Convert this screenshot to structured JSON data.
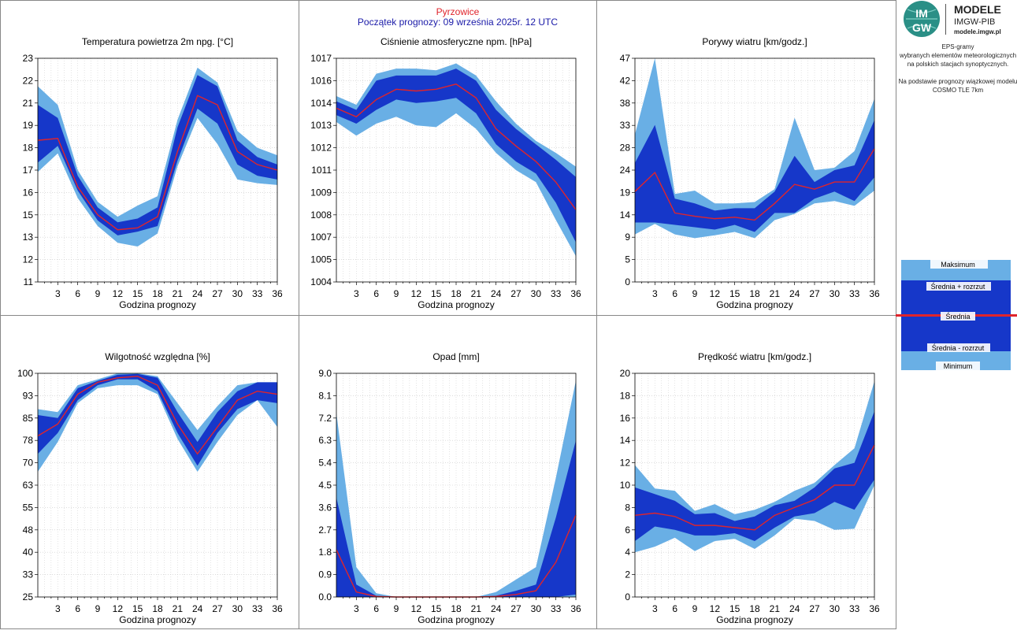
{
  "header": {
    "station": "Pyrzowice",
    "forecast_start": "Początek prognozy: 09 września 2025r. 12 UTC"
  },
  "logo": {
    "mark_top": "IM",
    "mark_bottom": "GW",
    "title": "MODELE",
    "subtitle": "IMGW-PIB",
    "url": "modele.imgw.pl"
  },
  "description": {
    "lines": [
      "EPS-gramy",
      "wybranych elementów meteorologicznych",
      "na polskich stacjach  synoptycznych.",
      "",
      "Na podstawie prognozy wiązkowej modelu",
      "COSMO TLE 7km"
    ]
  },
  "legend": {
    "items": [
      "Maksimum",
      "Średnia + rozrzut",
      "Średnia",
      "Średnia - rozrzut",
      "Minimum"
    ]
  },
  "colors": {
    "outer_band": "#69afe5",
    "inner_band": "#1637c9",
    "mean_line": "#e0242b",
    "station_title": "#e0242b",
    "forecast_title": "#1a1aa8",
    "grid": "#c8c8c8",
    "frame": "#888888"
  },
  "chart_data": [
    {
      "type": "area",
      "title": "Temperatura powietrza 2m npg. [°C]",
      "xlabel": "Godzina prognozy",
      "x": [
        0,
        3,
        6,
        9,
        12,
        15,
        18,
        21,
        24,
        27,
        30,
        33,
        36
      ],
      "x_ticks": [
        "3",
        "6",
        "9",
        "12",
        "15",
        "18",
        "21",
        "24",
        "27",
        "30",
        "33",
        "36"
      ],
      "y_ticks": [
        "11",
        "12",
        "13",
        "15",
        "16",
        "17",
        "18",
        "19",
        "21",
        "22",
        "23"
      ],
      "ylim": [
        11,
        23
      ],
      "series": [
        {
          "name": "Maksimum",
          "values": [
            21.5,
            20.5,
            17.0,
            15.3,
            14.5,
            15.1,
            15.6,
            19.7,
            22.5,
            21.7,
            19.1,
            18.2,
            17.8
          ]
        },
        {
          "name": "Średnia + rozrzut",
          "values": [
            20.5,
            19.8,
            16.7,
            15.0,
            14.2,
            14.4,
            15.0,
            19.3,
            22.1,
            21.5,
            18.6,
            17.7,
            17.3
          ]
        },
        {
          "name": "Średnia",
          "values": [
            18.6,
            18.7,
            16.1,
            14.6,
            13.8,
            13.9,
            14.5,
            18.0,
            21.0,
            20.5,
            18.0,
            17.3,
            17.0
          ]
        },
        {
          "name": "Średnia - rozrzut",
          "values": [
            17.4,
            18.3,
            15.9,
            14.3,
            13.5,
            13.7,
            14.0,
            17.5,
            20.3,
            19.5,
            17.3,
            16.7,
            16.5
          ]
        },
        {
          "name": "Minimum",
          "values": [
            16.9,
            17.9,
            15.5,
            14.0,
            13.1,
            12.9,
            13.6,
            17.2,
            19.8,
            18.4,
            16.5,
            16.3,
            16.2
          ]
        }
      ]
    },
    {
      "type": "area",
      "title": "Ciśnienie atmosferyczne npm. [hPa]",
      "xlabel": "Godzina prognozy",
      "x": [
        0,
        3,
        6,
        9,
        12,
        15,
        18,
        21,
        24,
        27,
        30,
        33,
        36
      ],
      "x_ticks": [
        "3",
        "6",
        "9",
        "12",
        "15",
        "18",
        "21",
        "24",
        "27",
        "30",
        "33",
        "36"
      ],
      "y_ticks": [
        "1004",
        "1005",
        "1007",
        "1008",
        "1009",
        "1011",
        "1012",
        "1013",
        "1014",
        "1016",
        "1017"
      ],
      "ylim": [
        1004,
        1017
      ],
      "series": [
        {
          "name": "Maksimum",
          "values": [
            1014.8,
            1014.3,
            1016.1,
            1016.4,
            1016.4,
            1016.3,
            1016.7,
            1016.0,
            1014.5,
            1013.2,
            1012.2,
            1011.5,
            1010.7
          ]
        },
        {
          "name": "Średnia + rozrzut",
          "values": [
            1014.5,
            1014.0,
            1015.7,
            1016.0,
            1016.0,
            1016.0,
            1016.4,
            1015.7,
            1014.0,
            1012.9,
            1012.0,
            1011.1,
            1010.1
          ]
        },
        {
          "name": "Średnia",
          "values": [
            1014.1,
            1013.6,
            1014.6,
            1015.2,
            1015.1,
            1015.2,
            1015.5,
            1014.7,
            1012.9,
            1011.9,
            1011.0,
            1009.8,
            1008.2
          ]
        },
        {
          "name": "Średnia - rozrzut",
          "values": [
            1013.7,
            1013.2,
            1014.0,
            1014.6,
            1014.4,
            1014.5,
            1014.7,
            1013.8,
            1012.0,
            1011.0,
            1010.3,
            1008.6,
            1006.3
          ]
        },
        {
          "name": "Minimum",
          "values": [
            1013.3,
            1012.5,
            1013.2,
            1013.6,
            1013.1,
            1013.0,
            1013.8,
            1012.9,
            1011.5,
            1010.5,
            1009.8,
            1007.6,
            1005.5
          ]
        }
      ]
    },
    {
      "type": "area",
      "title": "Porywy wiatru [km/godz.]",
      "xlabel": "Godzina prognozy",
      "x": [
        0,
        3,
        6,
        9,
        12,
        15,
        18,
        21,
        24,
        27,
        30,
        33,
        36
      ],
      "x_ticks": [
        "3",
        "6",
        "9",
        "12",
        "15",
        "18",
        "21",
        "24",
        "27",
        "30",
        "33",
        "36"
      ],
      "y_ticks": [
        "0",
        "5",
        "9",
        "14",
        "19",
        "24",
        "28",
        "33",
        "38",
        "42",
        "47"
      ],
      "ylim": [
        0,
        47
      ],
      "series": [
        {
          "name": "Maksimum",
          "values": [
            31,
            47,
            18.5,
            19.2,
            16.5,
            16.5,
            16.8,
            19.5,
            34.5,
            23.5,
            24.0,
            27.5,
            38.5
          ]
        },
        {
          "name": "Średnia + rozrzut",
          "values": [
            25,
            33,
            17.5,
            16.5,
            15.0,
            15.5,
            15.5,
            19.0,
            26.5,
            21.0,
            23.5,
            24.5,
            34.0
          ]
        },
        {
          "name": "Średnia",
          "values": [
            19,
            23,
            14.5,
            13.8,
            13.3,
            13.6,
            13.0,
            16.5,
            20.5,
            19.5,
            21.0,
            21.0,
            28.0
          ]
        },
        {
          "name": "Średnia - rozrzut",
          "values": [
            12.5,
            12.5,
            12.0,
            11.5,
            11.0,
            12.0,
            10.5,
            14.5,
            14.5,
            17.5,
            19.0,
            17.0,
            22.0
          ]
        },
        {
          "name": "Minimum",
          "values": [
            10,
            12.2,
            10.0,
            9.2,
            9.8,
            10.5,
            9.2,
            13.0,
            14.3,
            16.5,
            17.0,
            16.0,
            19.2
          ]
        }
      ]
    },
    {
      "type": "area",
      "title": "Wilgotność względna [%]",
      "xlabel": "Godzina prognozy",
      "x": [
        0,
        3,
        6,
        9,
        12,
        15,
        18,
        21,
        24,
        27,
        30,
        33,
        36
      ],
      "x_ticks": [
        "3",
        "6",
        "9",
        "12",
        "15",
        "18",
        "21",
        "24",
        "27",
        "30",
        "33",
        "36"
      ],
      "y_ticks": [
        "25",
        "33",
        "40",
        "48",
        "55",
        "63",
        "70",
        "78",
        "85",
        "93",
        "100"
      ],
      "ylim": [
        25,
        100
      ],
      "series": [
        {
          "name": "Maksimum",
          "values": [
            88,
            87,
            96,
            98,
            100,
            100,
            99,
            90,
            81,
            89,
            96,
            97,
            97
          ]
        },
        {
          "name": "Średnia + rozrzut",
          "values": [
            86,
            85,
            95,
            97.5,
            99.5,
            99.8,
            98.5,
            87,
            77,
            87,
            94,
            97,
            97
          ]
        },
        {
          "name": "Średnia",
          "values": [
            79,
            83,
            93,
            97,
            98.5,
            99,
            96,
            83,
            73,
            82,
            91,
            94,
            93
          ]
        },
        {
          "name": "Średnia - rozrzut",
          "values": [
            73,
            80,
            91,
            96,
            98,
            98,
            94,
            80,
            69,
            80,
            88,
            91,
            90
          ]
        },
        {
          "name": "Minimum",
          "values": [
            67,
            77,
            90,
            95,
            96,
            96,
            93,
            78,
            67,
            77,
            86,
            91,
            82
          ]
        }
      ]
    },
    {
      "type": "area",
      "title": "Opad [mm]",
      "xlabel": "Godzina prognozy",
      "x": [
        0,
        3,
        6,
        9,
        12,
        15,
        18,
        21,
        24,
        27,
        30,
        33,
        36
      ],
      "x_ticks": [
        "3",
        "6",
        "9",
        "12",
        "15",
        "18",
        "21",
        "24",
        "27",
        "30",
        "33",
        "36"
      ],
      "y_ticks": [
        "0.0",
        "0.9",
        "1.8",
        "2.7",
        "3.6",
        "4.5",
        "5.4",
        "6.3",
        "7.2",
        "8.1",
        "9.0"
      ],
      "ylim": [
        0,
        9.0
      ],
      "series": [
        {
          "name": "Maksimum",
          "values": [
            7.4,
            1.2,
            0.15,
            0,
            0,
            0,
            0,
            0,
            0.2,
            0.7,
            1.2,
            4.8,
            8.7
          ]
        },
        {
          "name": "Średnia + rozrzut",
          "values": [
            4.0,
            0.5,
            0.05,
            0,
            0,
            0,
            0,
            0,
            0.05,
            0.25,
            0.5,
            3.2,
            6.3
          ]
        },
        {
          "name": "Średnia",
          "values": [
            1.9,
            0.2,
            0.02,
            0,
            0,
            0,
            0,
            0,
            0.02,
            0.1,
            0.25,
            1.4,
            3.3
          ]
        },
        {
          "name": "Średnia - rozrzut",
          "values": [
            0,
            0,
            0,
            0,
            0,
            0,
            0,
            0,
            0,
            0,
            0,
            0,
            0.1
          ]
        },
        {
          "name": "Minimum",
          "values": [
            0,
            0,
            0,
            0,
            0,
            0,
            0,
            0,
            0,
            0,
            0,
            0,
            0
          ]
        }
      ]
    },
    {
      "type": "area",
      "title": "Prędkość wiatru [km/godz.]",
      "xlabel": "Godzina prognozy",
      "x": [
        0,
        3,
        6,
        9,
        12,
        15,
        18,
        21,
        24,
        27,
        30,
        33,
        36
      ],
      "x_ticks": [
        "3",
        "6",
        "9",
        "12",
        "15",
        "18",
        "21",
        "24",
        "27",
        "30",
        "33",
        "36"
      ],
      "y_ticks": [
        "0",
        "2",
        "4",
        "6",
        "8",
        "10",
        "12",
        "14",
        "16",
        "18",
        "20"
      ],
      "ylim": [
        0,
        20
      ],
      "series": [
        {
          "name": "Maksimum",
          "values": [
            11.8,
            9.7,
            9.5,
            7.7,
            8.3,
            7.4,
            7.8,
            8.5,
            9.5,
            10.2,
            11.8,
            13.3,
            19.3
          ]
        },
        {
          "name": "Średnia + rozrzut",
          "values": [
            9.8,
            9.2,
            8.6,
            7.4,
            7.5,
            6.8,
            7.2,
            8.2,
            8.6,
            9.8,
            11.5,
            12.0,
            16.6
          ]
        },
        {
          "name": "Średnia",
          "values": [
            7.3,
            7.5,
            7.2,
            6.4,
            6.4,
            6.2,
            6.0,
            7.3,
            8.0,
            8.7,
            10.0,
            10.0,
            13.6
          ]
        },
        {
          "name": "Średnia - rozrzut",
          "values": [
            5.0,
            6.3,
            6.0,
            5.5,
            5.5,
            5.7,
            5.0,
            6.2,
            7.2,
            7.5,
            8.5,
            7.8,
            10.5
          ]
        },
        {
          "name": "Minimum",
          "values": [
            4.0,
            4.5,
            5.3,
            4.1,
            5.0,
            5.2,
            4.3,
            5.5,
            7.0,
            6.8,
            6.0,
            6.1,
            10.0
          ]
        }
      ]
    }
  ]
}
